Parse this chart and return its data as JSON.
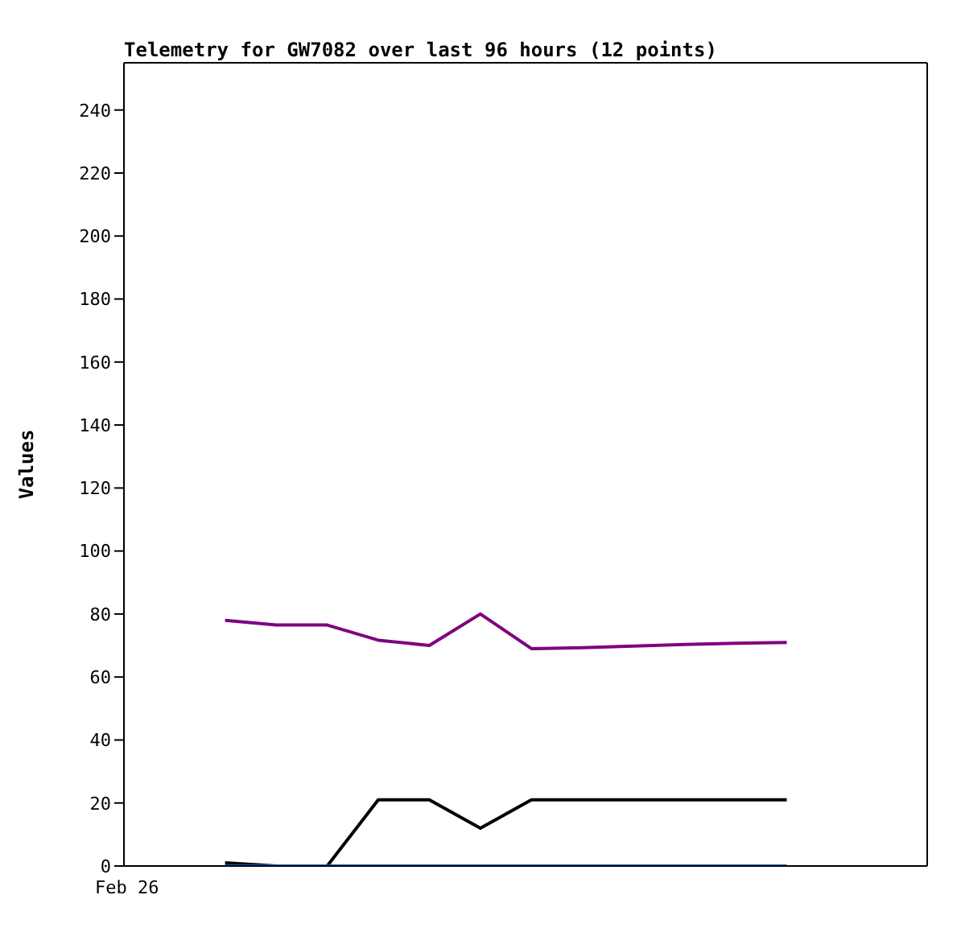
{
  "chart_data": {
    "type": "line",
    "title": "Telemetry for GW7082 over last 96 hours (12 points)",
    "ylabel": "Values",
    "annotations": [
      "Feb 26"
    ],
    "categories": [
      null,
      null,
      null,
      null,
      null,
      null,
      null,
      null,
      null,
      null,
      null,
      null
    ],
    "ylim": [
      0,
      255
    ],
    "yticks": [
      0,
      20,
      40,
      60,
      80,
      100,
      120,
      140,
      160,
      180,
      200,
      220,
      240
    ],
    "series": [
      {
        "color": "#800080",
        "values": [
          78,
          76.5,
          76.5,
          71.7,
          70,
          80,
          69,
          69.3,
          69.8,
          70.3,
          70.7,
          71
        ]
      },
      {
        "color": "#000000",
        "values": [
          1,
          0,
          0,
          21,
          21,
          12,
          21,
          21,
          21,
          21,
          21,
          21
        ]
      },
      {
        "color": "#0066cc",
        "values": [
          0,
          0,
          0,
          0,
          0,
          0,
          0,
          0,
          0,
          0,
          0,
          0
        ]
      }
    ]
  }
}
